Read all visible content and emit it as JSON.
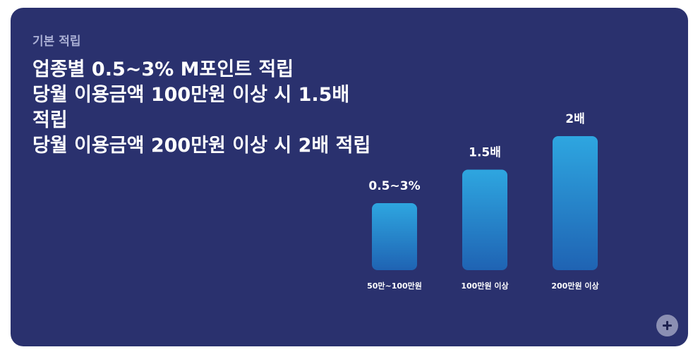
{
  "card": {
    "eyebrow": "기본 적립",
    "headline_lines": [
      "업종별 0.5~3% M포인트 적립",
      "당월 이용금액 100만원 이상 시 1.5배",
      "적립",
      "당월 이용금액 200만원 이상 시 2배 적립"
    ]
  },
  "chart_data": {
    "type": "bar",
    "categories": [
      "50만~100만원",
      "100만원 이상",
      "200만원 이상"
    ],
    "values": [
      1,
      1.5,
      2
    ],
    "data_labels": [
      "0.5~3%",
      "1.5배",
      "2배"
    ],
    "title": "",
    "xlabel": "",
    "ylabel": "",
    "ylim": [
      0,
      2
    ],
    "grid": false,
    "legend": "none",
    "bar_gradient": [
      "#2ea6e0",
      "#1f63b3"
    ]
  },
  "actions": {
    "expand_icon": "plus-icon"
  }
}
